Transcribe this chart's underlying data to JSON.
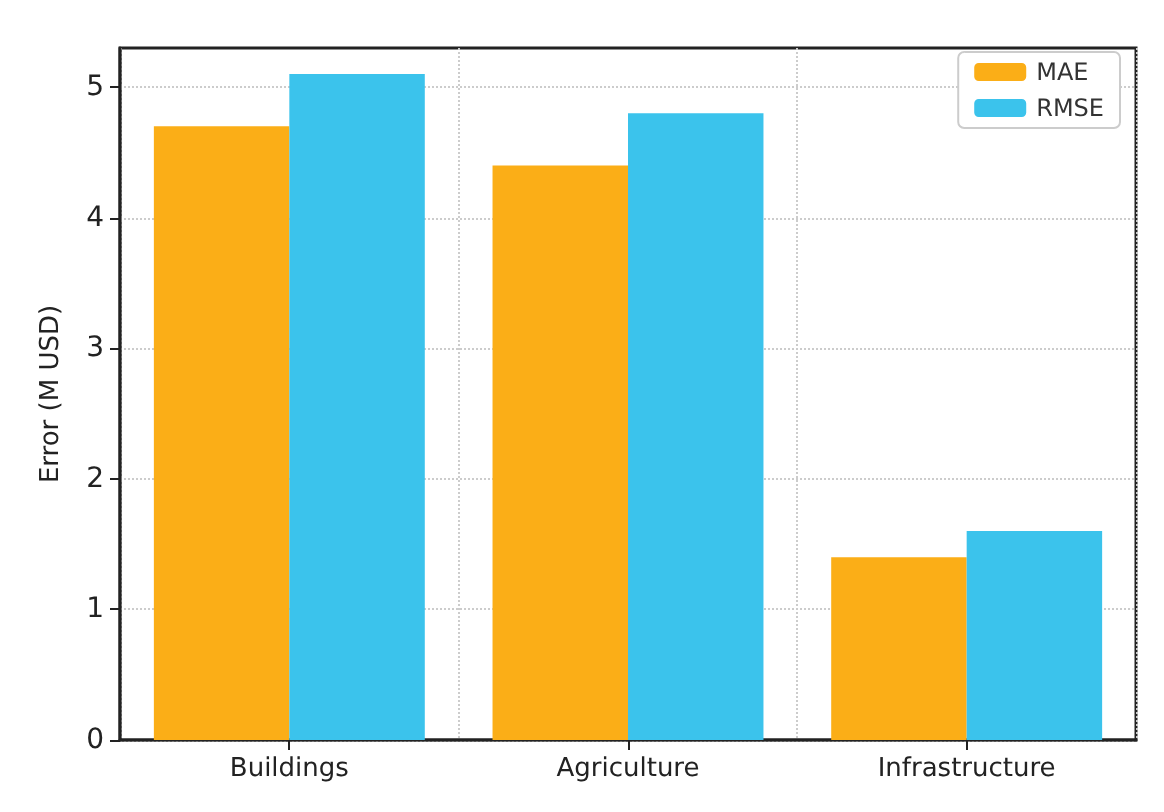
{
  "chart_data": {
    "type": "bar",
    "ylabel": "Error (M USD)",
    "categories": [
      "Buildings",
      "Agriculture",
      "Infrastructure"
    ],
    "series": [
      {
        "name": "MAE",
        "color": "#fbae17",
        "values": [
          4.7,
          4.4,
          1.4
        ]
      },
      {
        "name": "RMSE",
        "color": "#3bc3ec",
        "values": [
          5.1,
          4.8,
          1.6
        ]
      }
    ],
    "ylim": [
      0,
      5.3
    ],
    "yticks": [
      0,
      1,
      2,
      3,
      4,
      5
    ],
    "grid": true,
    "legend": "top right"
  }
}
